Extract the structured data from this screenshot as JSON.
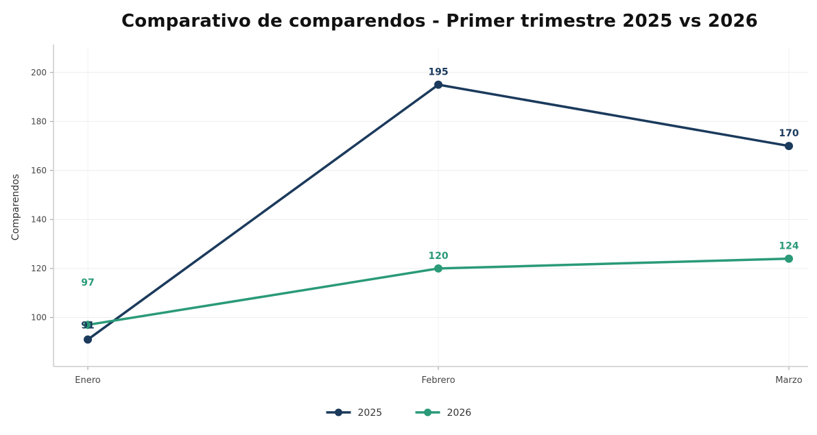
{
  "chart_data": {
    "type": "line",
    "title": "Comparativo de comparendos - Primer trimestre 2025 vs 2026",
    "xlabel": "",
    "ylabel": "Comparendos",
    "categories": [
      "Enero",
      "Febrero",
      "Marzo"
    ],
    "ylim": [
      80,
      210
    ],
    "yticks": [
      100,
      120,
      140,
      160,
      180,
      200
    ],
    "grid": true,
    "legend_position": "bottom-center",
    "series": [
      {
        "name": "2025",
        "values": [
          91,
          195,
          170
        ],
        "color": "#1b3a5c"
      },
      {
        "name": "2026",
        "values": [
          97,
          120,
          124
        ],
        "color": "#2a9a78"
      }
    ]
  }
}
